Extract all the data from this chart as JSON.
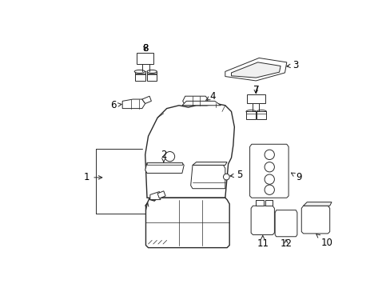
{
  "background_color": "#ffffff",
  "line_color": "#2a2a2a",
  "label_color": "#000000",
  "figsize": [
    4.89,
    3.6
  ],
  "dpi": 100,
  "lw_main": 1.0,
  "lw_thin": 0.7,
  "lw_detail": 0.5
}
